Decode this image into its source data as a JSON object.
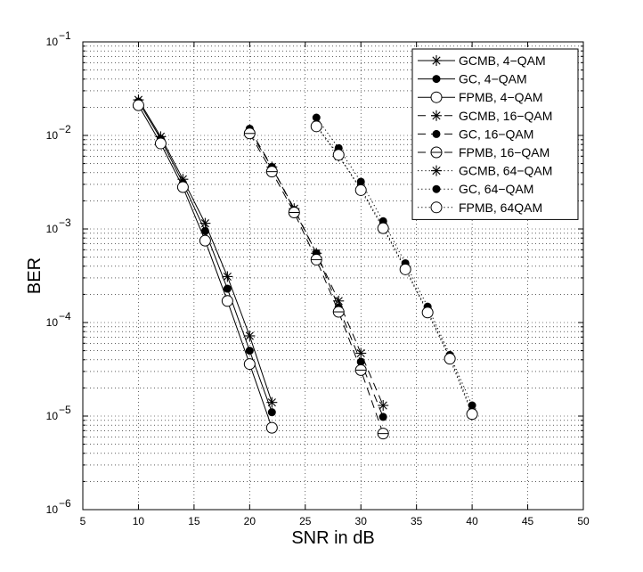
{
  "chart_data": {
    "type": "line",
    "xlabel": "SNR in dB",
    "ylabel": "BER",
    "xlim": [
      5,
      50
    ],
    "ylim": [
      1e-06,
      0.1
    ],
    "yscale": "log",
    "grid": true,
    "legend_position": "top-right",
    "x_ticks": [
      "5",
      "10",
      "15",
      "20",
      "25",
      "30",
      "35",
      "40",
      "45",
      "50"
    ],
    "y_ticks": [
      {
        "base": "10",
        "exp": "−6"
      },
      {
        "base": "10",
        "exp": "−5"
      },
      {
        "base": "10",
        "exp": "−4"
      },
      {
        "base": "10",
        "exp": "−3"
      },
      {
        "base": "10",
        "exp": "−2"
      },
      {
        "base": "10",
        "exp": "−1"
      }
    ],
    "series": [
      {
        "name": "GCMB, 4−QAM",
        "marker": "star",
        "line": "solid",
        "x": [
          10,
          12,
          14,
          16,
          18,
          20,
          22
        ],
        "y": [
          0.024,
          0.0097,
          0.0034,
          0.00115,
          0.00031,
          7.2e-05,
          1.4e-05
        ]
      },
      {
        "name": "GC, 4−QAM",
        "marker": "dot",
        "line": "solid",
        "x": [
          10,
          12,
          14,
          16,
          18,
          20,
          22
        ],
        "y": [
          0.023,
          0.0092,
          0.0031,
          0.00095,
          0.00023,
          5e-05,
          1.1e-05
        ]
      },
      {
        "name": "FPMB, 4−QAM",
        "marker": "circle",
        "line": "solid",
        "x": [
          10,
          12,
          14,
          16,
          18,
          20,
          22
        ],
        "y": [
          0.021,
          0.0082,
          0.0028,
          0.00075,
          0.00017,
          3.6e-05,
          7.5e-06
        ]
      },
      {
        "name": "GCMB, 16−QAM",
        "marker": "star",
        "line": "dashed",
        "x": [
          20,
          22,
          24,
          26,
          28,
          30,
          32
        ],
        "y": [
          0.011,
          0.0046,
          0.00165,
          0.00055,
          0.00017,
          4.7e-05,
          1.3e-05
        ]
      },
      {
        "name": "GC, 16−QAM",
        "marker": "dot",
        "line": "dashed",
        "x": [
          20,
          22,
          24,
          26,
          28,
          30,
          32
        ],
        "y": [
          0.0118,
          0.0046,
          0.0016,
          0.00055,
          0.000145,
          3.8e-05,
          9.8e-06
        ]
      },
      {
        "name": "FPMB, 16−QAM",
        "marker": "circle-line",
        "line": "dashed",
        "x": [
          20,
          22,
          24,
          26,
          28,
          30,
          32
        ],
        "y": [
          0.0105,
          0.0041,
          0.0015,
          0.00047,
          0.00013,
          3.1e-05,
          6.5e-06
        ]
      },
      {
        "name": "GCMB, 64−QAM",
        "marker": "star",
        "line": "dotted",
        "x": [
          26,
          28,
          30,
          32,
          34,
          36,
          38,
          40
        ],
        "y": [
          0.0128,
          0.006,
          0.0027,
          0.00105,
          0.00038,
          0.000132,
          4.3e-05,
          1.1e-05
        ]
      },
      {
        "name": "GC, 64−QAM",
        "marker": "dot",
        "line": "dotted",
        "x": [
          26,
          28,
          30,
          32,
          34,
          36,
          38,
          40
        ],
        "y": [
          0.0155,
          0.0073,
          0.0032,
          0.00121,
          0.00043,
          0.000148,
          4.5e-05,
          1.3e-05
        ]
      },
      {
        "name": "FPMB, 64QAM",
        "marker": "circle",
        "line": "dotted",
        "x": [
          26,
          28,
          30,
          32,
          34,
          36,
          38,
          40
        ],
        "y": [
          0.0125,
          0.0062,
          0.0026,
          0.00102,
          0.00037,
          0.000128,
          4.1e-05,
          1.05e-05
        ]
      }
    ]
  }
}
